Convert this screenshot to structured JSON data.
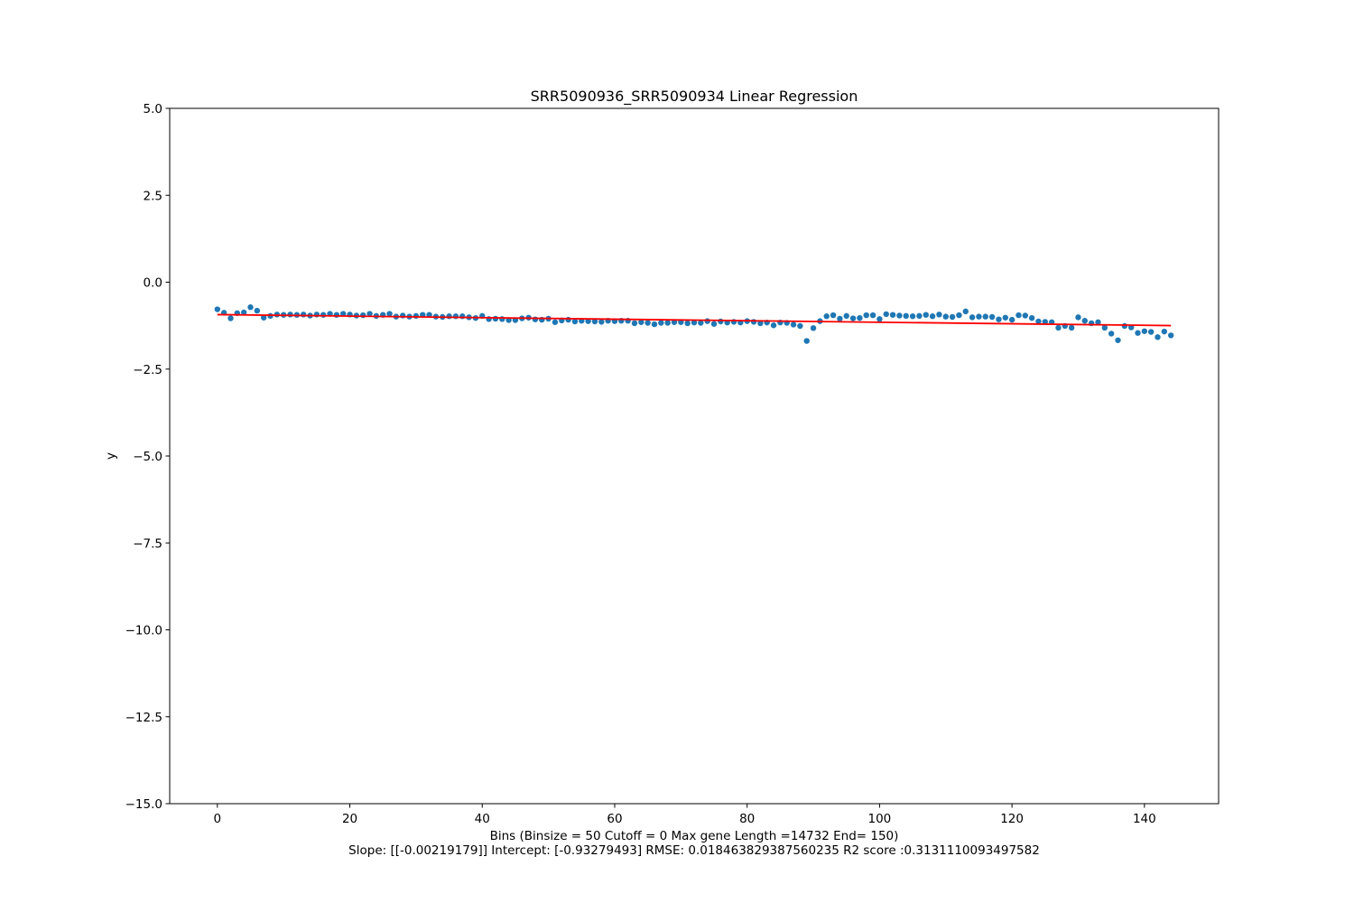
{
  "chart_data": {
    "type": "scatter",
    "title": "SRR5090936_SRR5090934 Linear Regression",
    "xlabel": "Bins  (Binsize = 50 Cutoff = 0 Max gene Length =14732 End= 150)",
    "stats_line": "Slope: [[-0.00219179]] Intercept: [-0.93279493] RMSE: 0.018463829387560235 R2 score :0.3131110093497582",
    "ylabel": "y",
    "xlim": [
      -7.2,
      151.2
    ],
    "ylim": [
      -15.0,
      5.0
    ],
    "x_ticks": [
      0,
      20,
      40,
      60,
      80,
      100,
      120,
      140
    ],
    "x_tick_labels": [
      "0",
      "20",
      "40",
      "60",
      "80",
      "100",
      "120",
      "140"
    ],
    "y_ticks": [
      5.0,
      2.5,
      0.0,
      -2.5,
      -5.0,
      -7.5,
      -10.0,
      -12.5,
      -15.0
    ],
    "y_tick_labels": [
      "5.0",
      "2.5",
      "0.0",
      "−2.5",
      "−5.0",
      "−7.5",
      "−10.0",
      "−12.5",
      "−15.0"
    ],
    "grid": false,
    "series": [
      {
        "kind": "scatter",
        "color": "#1f77b4",
        "x": [
          0,
          1,
          2,
          3,
          4,
          5,
          6,
          7,
          8,
          9,
          10,
          11,
          12,
          13,
          14,
          15,
          16,
          17,
          18,
          19,
          20,
          21,
          22,
          23,
          24,
          25,
          26,
          27,
          28,
          29,
          30,
          31,
          32,
          33,
          34,
          35,
          36,
          37,
          38,
          39,
          40,
          41,
          42,
          43,
          44,
          45,
          46,
          47,
          48,
          49,
          50,
          51,
          52,
          53,
          54,
          55,
          56,
          57,
          58,
          59,
          60,
          61,
          62,
          63,
          64,
          65,
          66,
          67,
          68,
          69,
          70,
          71,
          72,
          73,
          74,
          75,
          76,
          77,
          78,
          79,
          80,
          81,
          82,
          83,
          84,
          85,
          86,
          87,
          88,
          89,
          90,
          91,
          92,
          93,
          94,
          95,
          96,
          97,
          98,
          99,
          100,
          101,
          102,
          103,
          104,
          105,
          106,
          107,
          108,
          109,
          110,
          111,
          112,
          113,
          114,
          115,
          116,
          117,
          118,
          119,
          120,
          121,
          122,
          123,
          124,
          125,
          126,
          127,
          128,
          129,
          130,
          131,
          132,
          133,
          134,
          135,
          136,
          137,
          138,
          139,
          140,
          141,
          142,
          143,
          144
        ],
        "y": [
          -0.78,
          -0.88,
          -1.04,
          -0.89,
          -0.87,
          -0.72,
          -0.82,
          -1.02,
          -0.97,
          -0.93,
          -0.94,
          -0.93,
          -0.94,
          -0.93,
          -0.96,
          -0.93,
          -0.94,
          -0.91,
          -0.94,
          -0.91,
          -0.93,
          -0.96,
          -0.95,
          -0.91,
          -0.97,
          -0.94,
          -0.91,
          -0.99,
          -0.96,
          -0.99,
          -0.97,
          -0.94,
          -0.94,
          -0.99,
          -1.0,
          -0.98,
          -0.98,
          -0.98,
          -1.01,
          -1.03,
          -0.97,
          -1.06,
          -1.05,
          -1.06,
          -1.09,
          -1.09,
          -1.04,
          -1.02,
          -1.07,
          -1.08,
          -1.05,
          -1.15,
          -1.1,
          -1.08,
          -1.13,
          -1.11,
          -1.12,
          -1.13,
          -1.14,
          -1.11,
          -1.12,
          -1.11,
          -1.11,
          -1.18,
          -1.15,
          -1.17,
          -1.21,
          -1.17,
          -1.17,
          -1.15,
          -1.15,
          -1.18,
          -1.16,
          -1.17,
          -1.12,
          -1.2,
          -1.13,
          -1.16,
          -1.14,
          -1.16,
          -1.12,
          -1.14,
          -1.18,
          -1.16,
          -1.24,
          -1.16,
          -1.17,
          -1.22,
          -1.26,
          -1.69,
          -1.32,
          -1.12,
          -0.98,
          -0.95,
          -1.05,
          -0.97,
          -1.04,
          -1.03,
          -0.95,
          -0.95,
          -1.06,
          -0.92,
          -0.94,
          -0.96,
          -0.97,
          -0.98,
          -0.97,
          -0.94,
          -0.98,
          -0.93,
          -0.99,
          -1.0,
          -0.95,
          -0.84,
          -1.01,
          -0.99,
          -0.99,
          -1.0,
          -1.07,
          -1.02,
          -1.08,
          -0.95,
          -0.96,
          -1.03,
          -1.13,
          -1.14,
          -1.15,
          -1.31,
          -1.26,
          -1.31,
          -1.01,
          -1.11,
          -1.18,
          -1.15,
          -1.31,
          -1.48,
          -1.67,
          -1.26,
          -1.3,
          -1.46,
          -1.41,
          -1.43,
          -1.58,
          -1.42,
          -1.53
        ]
      },
      {
        "kind": "line",
        "color": "#ff0000",
        "x": [
          0,
          144
        ],
        "y": [
          -0.93279493,
          -1.24841269
        ]
      }
    ]
  }
}
